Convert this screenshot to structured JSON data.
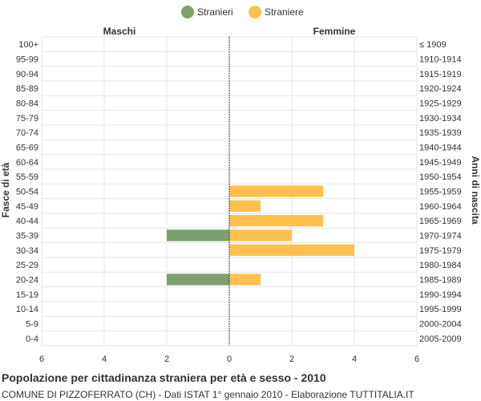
{
  "chart_data": {
    "type": "bar",
    "orientation": "horizontal-population-pyramid",
    "title": "Popolazione per cittadinanza straniera per età e sesso - 2010",
    "subtitle": "COMUNE DI PIZZOFERRATO (CH) - Dati ISTAT 1° gennaio 2010 - Elaborazione TUTTITALIA.IT",
    "ylabel_left": "Fasce di età",
    "ylabel_right": "Anni di nascita",
    "left_header": "Maschi",
    "right_header": "Femmine",
    "legend_position": "top-center",
    "grid": true,
    "xlim": [
      -6,
      6
    ],
    "x_ticks": [
      -6,
      -4,
      -2,
      0,
      2,
      4,
      6
    ],
    "x_tick_labels": [
      "6",
      "4",
      "2",
      "0",
      "2",
      "4",
      "6"
    ],
    "categories": [
      "100+",
      "95-99",
      "90-94",
      "85-89",
      "80-84",
      "75-79",
      "70-74",
      "65-69",
      "60-64",
      "55-59",
      "50-54",
      "45-49",
      "40-44",
      "35-39",
      "30-34",
      "25-29",
      "20-24",
      "15-19",
      "10-14",
      "5-9",
      "0-4"
    ],
    "birth_years": [
      "≤ 1909",
      "1910-1914",
      "1915-1919",
      "1920-1924",
      "1925-1929",
      "1930-1934",
      "1935-1939",
      "1940-1944",
      "1945-1949",
      "1950-1954",
      "1955-1959",
      "1960-1964",
      "1965-1969",
      "1970-1974",
      "1975-1979",
      "1980-1984",
      "1985-1989",
      "1990-1994",
      "1995-1999",
      "2000-2004",
      "2005-2009"
    ],
    "series": [
      {
        "name": "Stranieri",
        "side": "left",
        "color": "#7da16e",
        "values": [
          0,
          0,
          0,
          0,
          0,
          0,
          0,
          0,
          0,
          0,
          0,
          0,
          0,
          2,
          0,
          0,
          2,
          0,
          0,
          0,
          0
        ]
      },
      {
        "name": "Straniere",
        "side": "right",
        "color": "#ffc04d",
        "values": [
          0,
          0,
          0,
          0,
          0,
          0,
          0,
          0,
          0,
          0,
          3,
          1,
          3,
          2,
          4,
          0,
          1,
          0,
          0,
          0,
          0
        ]
      }
    ]
  }
}
